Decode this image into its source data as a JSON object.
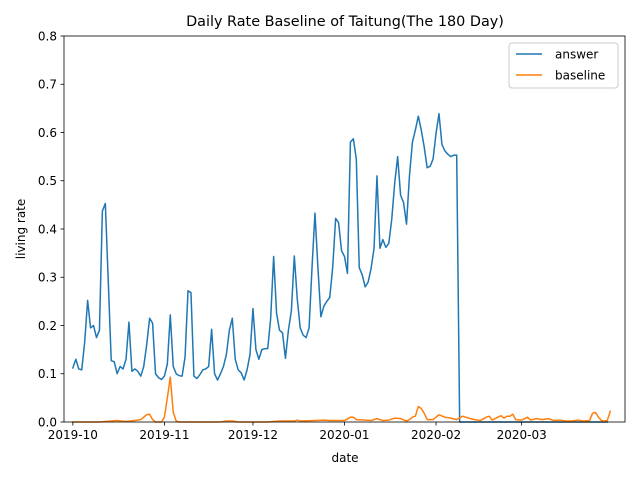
{
  "chart_data": {
    "type": "line",
    "title": "Daily Rate Baseline of Taitung(The 180 Day)",
    "xlabel": "date",
    "ylabel": "living rate",
    "xlim": [
      "2019-09-28",
      "2020-04-05"
    ],
    "ylim": [
      0.0,
      0.8
    ],
    "x_ticks": [
      {
        "date": "2019-10-01",
        "label": "2019-10"
      },
      {
        "date": "2019-11-01",
        "label": "2019-11"
      },
      {
        "date": "2019-12-01",
        "label": "2019-12"
      },
      {
        "date": "2020-01-01",
        "label": "2020-01"
      },
      {
        "date": "2020-02-01",
        "label": "2020-02"
      },
      {
        "date": "2020-03-01",
        "label": "2020-03"
      }
    ],
    "y_ticks": [
      0.0,
      0.1,
      0.2,
      0.3,
      0.4,
      0.5,
      0.6,
      0.7,
      0.8
    ],
    "y_tick_labels": [
      "0.0",
      "0.1",
      "0.2",
      "0.3",
      "0.4",
      "0.5",
      "0.6",
      "0.7",
      "0.8"
    ],
    "grid": false,
    "legend_position": "top-right",
    "series": [
      {
        "name": "answer",
        "color": "#1f77b4",
        "points": [
          [
            "2019-10-01",
            0.112
          ],
          [
            "2019-10-02",
            0.13
          ],
          [
            "2019-10-03",
            0.11
          ],
          [
            "2019-10-04",
            0.108
          ],
          [
            "2019-10-05",
            0.165
          ],
          [
            "2019-10-06",
            0.252
          ],
          [
            "2019-10-07",
            0.195
          ],
          [
            "2019-10-08",
            0.2
          ],
          [
            "2019-10-09",
            0.175
          ],
          [
            "2019-10-10",
            0.19
          ],
          [
            "2019-10-11",
            0.437
          ],
          [
            "2019-10-12",
            0.453
          ],
          [
            "2019-10-13",
            0.29
          ],
          [
            "2019-10-14",
            0.127
          ],
          [
            "2019-10-15",
            0.125
          ],
          [
            "2019-10-16",
            0.1
          ],
          [
            "2019-10-17",
            0.115
          ],
          [
            "2019-10-18",
            0.11
          ],
          [
            "2019-10-19",
            0.13
          ],
          [
            "2019-10-20",
            0.207
          ],
          [
            "2019-10-21",
            0.105
          ],
          [
            "2019-10-22",
            0.11
          ],
          [
            "2019-10-23",
            0.105
          ],
          [
            "2019-10-24",
            0.095
          ],
          [
            "2019-10-25",
            0.115
          ],
          [
            "2019-10-26",
            0.16
          ],
          [
            "2019-10-27",
            0.215
          ],
          [
            "2019-10-28",
            0.205
          ],
          [
            "2019-10-29",
            0.1
          ],
          [
            "2019-10-30",
            0.092
          ],
          [
            "2019-10-31",
            0.088
          ],
          [
            "2019-11-01",
            0.095
          ],
          [
            "2019-11-02",
            0.12
          ],
          [
            "2019-11-03",
            0.222
          ],
          [
            "2019-11-04",
            0.115
          ],
          [
            "2019-11-05",
            0.1
          ],
          [
            "2019-11-06",
            0.096
          ],
          [
            "2019-11-07",
            0.095
          ],
          [
            "2019-11-08",
            0.135
          ],
          [
            "2019-11-09",
            0.272
          ],
          [
            "2019-11-10",
            0.268
          ],
          [
            "2019-11-11",
            0.095
          ],
          [
            "2019-11-12",
            0.09
          ],
          [
            "2019-11-13",
            0.098
          ],
          [
            "2019-11-14",
            0.108
          ],
          [
            "2019-11-15",
            0.11
          ],
          [
            "2019-11-16",
            0.115
          ],
          [
            "2019-11-17",
            0.192
          ],
          [
            "2019-11-18",
            0.1
          ],
          [
            "2019-11-19",
            0.087
          ],
          [
            "2019-11-20",
            0.1
          ],
          [
            "2019-11-21",
            0.115
          ],
          [
            "2019-11-22",
            0.14
          ],
          [
            "2019-11-23",
            0.19
          ],
          [
            "2019-11-24",
            0.215
          ],
          [
            "2019-11-25",
            0.13
          ],
          [
            "2019-11-26",
            0.108
          ],
          [
            "2019-11-27",
            0.102
          ],
          [
            "2019-11-28",
            0.087
          ],
          [
            "2019-11-29",
            0.108
          ],
          [
            "2019-11-30",
            0.14
          ],
          [
            "2019-12-01",
            0.235
          ],
          [
            "2019-12-02",
            0.15
          ],
          [
            "2019-12-03",
            0.13
          ],
          [
            "2019-12-04",
            0.15
          ],
          [
            "2019-12-05",
            0.152
          ],
          [
            "2019-12-06",
            0.152
          ],
          [
            "2019-12-07",
            0.215
          ],
          [
            "2019-12-08",
            0.343
          ],
          [
            "2019-12-09",
            0.225
          ],
          [
            "2019-12-10",
            0.19
          ],
          [
            "2019-12-11",
            0.185
          ],
          [
            "2019-12-12",
            0.132
          ],
          [
            "2019-12-13",
            0.19
          ],
          [
            "2019-12-14",
            0.23
          ],
          [
            "2019-12-15",
            0.344
          ],
          [
            "2019-12-16",
            0.255
          ],
          [
            "2019-12-17",
            0.195
          ],
          [
            "2019-12-18",
            0.18
          ],
          [
            "2019-12-19",
            0.175
          ],
          [
            "2019-12-20",
            0.195
          ],
          [
            "2019-12-21",
            0.32
          ],
          [
            "2019-12-22",
            0.433
          ],
          [
            "2019-12-23",
            0.32
          ],
          [
            "2019-12-24",
            0.218
          ],
          [
            "2019-12-25",
            0.24
          ],
          [
            "2019-12-26",
            0.25
          ],
          [
            "2019-12-27",
            0.258
          ],
          [
            "2019-12-28",
            0.32
          ],
          [
            "2019-12-29",
            0.422
          ],
          [
            "2019-12-30",
            0.413
          ],
          [
            "2019-12-31",
            0.355
          ],
          [
            "2020-01-01",
            0.343
          ],
          [
            "2020-01-02",
            0.308
          ],
          [
            "2020-01-03",
            0.58
          ],
          [
            "2020-01-04",
            0.587
          ],
          [
            "2020-01-05",
            0.545
          ],
          [
            "2020-01-06",
            0.32
          ],
          [
            "2020-01-07",
            0.305
          ],
          [
            "2020-01-08",
            0.28
          ],
          [
            "2020-01-09",
            0.29
          ],
          [
            "2020-01-10",
            0.318
          ],
          [
            "2020-01-11",
            0.36
          ],
          [
            "2020-01-12",
            0.51
          ],
          [
            "2020-01-13",
            0.36
          ],
          [
            "2020-01-14",
            0.378
          ],
          [
            "2020-01-15",
            0.362
          ],
          [
            "2020-01-16",
            0.37
          ],
          [
            "2020-01-17",
            0.42
          ],
          [
            "2020-01-18",
            0.495
          ],
          [
            "2020-01-19",
            0.55
          ],
          [
            "2020-01-20",
            0.47
          ],
          [
            "2020-01-21",
            0.455
          ],
          [
            "2020-01-22",
            0.41
          ],
          [
            "2020-01-23",
            0.51
          ],
          [
            "2020-01-24",
            0.58
          ],
          [
            "2020-01-25",
            0.605
          ],
          [
            "2020-01-26",
            0.634
          ],
          [
            "2020-01-27",
            0.605
          ],
          [
            "2020-01-28",
            0.57
          ],
          [
            "2020-01-29",
            0.527
          ],
          [
            "2020-01-30",
            0.53
          ],
          [
            "2020-01-31",
            0.545
          ],
          [
            "2020-02-01",
            0.598
          ],
          [
            "2020-02-02",
            0.639
          ],
          [
            "2020-02-03",
            0.575
          ],
          [
            "2020-02-04",
            0.562
          ],
          [
            "2020-02-05",
            0.555
          ],
          [
            "2020-02-06",
            0.55
          ],
          [
            "2020-02-07",
            0.553
          ],
          [
            "2020-02-08",
            0.553
          ],
          [
            "2020-02-09",
            0.0
          ],
          [
            "2020-02-10",
            0.0
          ],
          [
            "2020-02-15",
            0.0
          ],
          [
            "2020-02-20",
            0.0
          ],
          [
            "2020-02-25",
            0.0
          ],
          [
            "2020-03-01",
            0.0
          ],
          [
            "2020-03-10",
            0.0
          ],
          [
            "2020-03-20",
            0.0
          ],
          [
            "2020-03-28",
            0.0
          ],
          [
            "2020-03-30",
            0.0
          ]
        ]
      },
      {
        "name": "baseline",
        "color": "#ff7f0e",
        "points": [
          [
            "2019-10-01",
            0.0
          ],
          [
            "2019-10-10",
            0.0
          ],
          [
            "2019-10-14",
            0.002
          ],
          [
            "2019-10-16",
            0.003
          ],
          [
            "2019-10-19",
            0.001
          ],
          [
            "2019-10-22",
            0.003
          ],
          [
            "2019-10-24",
            0.005
          ],
          [
            "2019-10-26",
            0.015
          ],
          [
            "2019-10-27",
            0.016
          ],
          [
            "2019-10-28",
            0.005
          ],
          [
            "2019-10-29",
            0.0
          ],
          [
            "2019-10-31",
            0.0
          ],
          [
            "2019-11-01",
            0.01
          ],
          [
            "2019-11-02",
            0.05
          ],
          [
            "2019-11-03",
            0.093
          ],
          [
            "2019-11-04",
            0.02
          ],
          [
            "2019-11-05",
            0.002
          ],
          [
            "2019-11-06",
            0.0
          ],
          [
            "2019-11-20",
            0.0
          ],
          [
            "2019-11-22",
            0.002
          ],
          [
            "2019-11-24",
            0.002
          ],
          [
            "2019-11-26",
            0.0
          ],
          [
            "2019-12-06",
            0.0
          ],
          [
            "2019-12-10",
            0.002
          ],
          [
            "2019-12-15",
            0.002
          ],
          [
            "2019-12-16",
            0.004
          ],
          [
            "2019-12-17",
            0.002
          ],
          [
            "2019-12-22",
            0.003
          ],
          [
            "2019-12-25",
            0.004
          ],
          [
            "2019-12-27",
            0.003
          ],
          [
            "2019-12-29",
            0.003
          ],
          [
            "2020-01-01",
            0.003
          ],
          [
            "2020-01-03",
            0.01
          ],
          [
            "2020-01-04",
            0.01
          ],
          [
            "2020-01-05",
            0.005
          ],
          [
            "2020-01-08",
            0.004
          ],
          [
            "2020-01-10",
            0.003
          ],
          [
            "2020-01-12",
            0.007
          ],
          [
            "2020-01-14",
            0.003
          ],
          [
            "2020-01-16",
            0.004
          ],
          [
            "2020-01-18",
            0.008
          ],
          [
            "2020-01-20",
            0.007
          ],
          [
            "2020-01-22",
            0.002
          ],
          [
            "2020-01-23",
            0.005
          ],
          [
            "2020-01-24",
            0.01
          ],
          [
            "2020-01-25",
            0.012
          ],
          [
            "2020-01-26",
            0.032
          ],
          [
            "2020-01-27",
            0.028
          ],
          [
            "2020-01-28",
            0.018
          ],
          [
            "2020-01-29",
            0.005
          ],
          [
            "2020-01-31",
            0.005
          ],
          [
            "2020-02-02",
            0.015
          ],
          [
            "2020-02-04",
            0.01
          ],
          [
            "2020-02-06",
            0.008
          ],
          [
            "2020-02-08",
            0.005
          ],
          [
            "2020-02-10",
            0.012
          ],
          [
            "2020-02-12",
            0.008
          ],
          [
            "2020-02-14",
            0.005
          ],
          [
            "2020-02-16",
            0.003
          ],
          [
            "2020-02-18",
            0.01
          ],
          [
            "2020-02-19",
            0.012
          ],
          [
            "2020-02-20",
            0.004
          ],
          [
            "2020-02-22",
            0.01
          ],
          [
            "2020-02-23",
            0.013
          ],
          [
            "2020-02-24",
            0.008
          ],
          [
            "2020-02-25",
            0.012
          ],
          [
            "2020-02-26",
            0.012
          ],
          [
            "2020-02-27",
            0.016
          ],
          [
            "2020-02-28",
            0.005
          ],
          [
            "2020-03-01",
            0.004
          ],
          [
            "2020-03-03",
            0.01
          ],
          [
            "2020-03-04",
            0.004
          ],
          [
            "2020-03-06",
            0.007
          ],
          [
            "2020-03-08",
            0.005
          ],
          [
            "2020-03-10",
            0.007
          ],
          [
            "2020-03-12",
            0.003
          ],
          [
            "2020-03-14",
            0.004
          ],
          [
            "2020-03-16",
            0.002
          ],
          [
            "2020-03-18",
            0.002
          ],
          [
            "2020-03-20",
            0.004
          ],
          [
            "2020-03-22",
            0.002
          ],
          [
            "2020-03-24",
            0.003
          ],
          [
            "2020-03-25",
            0.018
          ],
          [
            "2020-03-26",
            0.02
          ],
          [
            "2020-03-27",
            0.01
          ],
          [
            "2020-03-28",
            0.003
          ],
          [
            "2020-03-29",
            0.002
          ],
          [
            "2020-03-30",
            0.003
          ],
          [
            "2020-03-31",
            0.022
          ]
        ]
      }
    ]
  }
}
